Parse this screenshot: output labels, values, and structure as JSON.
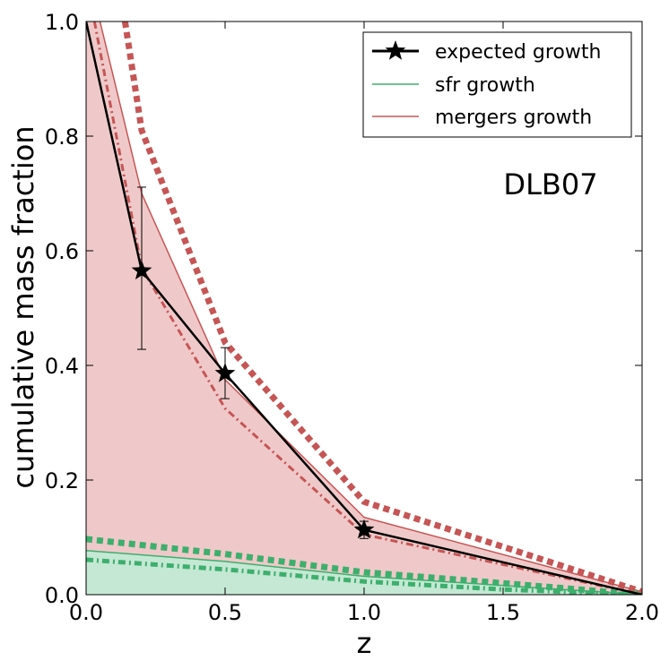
{
  "chart_data": {
    "type": "line",
    "title": "",
    "xlabel": "z",
    "ylabel": "cumulative mass fraction",
    "xlim": [
      0.0,
      2.0
    ],
    "ylim": [
      0.0,
      1.0
    ],
    "xticks": [
      "0.0",
      "0.5",
      "1.0",
      "1.5",
      "2.0"
    ],
    "yticks": [
      "0.0",
      "0.2",
      "0.4",
      "0.6",
      "0.8",
      "1.0"
    ],
    "annotation": "DLB07",
    "legend": {
      "placement": "top-right",
      "entries": [
        "expected growth",
        "sfr growth",
        "mergers growth"
      ]
    },
    "colors": {
      "expected": "#000000",
      "sfr": "#3daf6d",
      "mergers": "#c65555",
      "mergers_fill": "#efc9c9",
      "sfr_fill": "#c4e8d3"
    },
    "series": [
      {
        "name": "expected growth",
        "style": "solid-star",
        "x": [
          0.0,
          0.2,
          0.5,
          1.0,
          2.0
        ],
        "y": [
          1.0,
          0.565,
          0.386,
          0.113,
          0.0
        ],
        "yerr_low": [
          null,
          0.428,
          0.342,
          0.098,
          null
        ],
        "yerr_high": [
          null,
          0.711,
          0.431,
          0.128,
          null
        ]
      },
      {
        "name": "mergers growth",
        "style": "solid-thin",
        "x": [
          0.05,
          0.2,
          0.5,
          1.0,
          2.0
        ],
        "y": [
          1.0,
          0.7,
          0.375,
          0.135,
          0.005
        ]
      },
      {
        "name": "mergers upper",
        "style": "dotted-thick",
        "x": [
          0.14,
          0.2,
          0.5,
          1.0,
          2.0
        ],
        "y": [
          1.0,
          0.81,
          0.44,
          0.162,
          0.005
        ]
      },
      {
        "name": "mergers lower",
        "style": "dashdot",
        "x": [
          0.03,
          0.2,
          0.5,
          1.0,
          2.0
        ],
        "y": [
          1.0,
          0.57,
          0.325,
          0.105,
          0.0
        ]
      },
      {
        "name": "sfr growth",
        "style": "solid-thin",
        "x": [
          0.0,
          0.5,
          1.0,
          1.5,
          2.0
        ],
        "y": [
          0.077,
          0.058,
          0.032,
          0.016,
          0.0
        ]
      },
      {
        "name": "sfr upper",
        "style": "dotted-thick",
        "x": [
          0.0,
          0.5,
          1.0,
          1.5,
          2.0
        ],
        "y": [
          0.097,
          0.071,
          0.039,
          0.02,
          0.0
        ]
      },
      {
        "name": "sfr lower",
        "style": "dashdot",
        "x": [
          0.0,
          0.5,
          1.0,
          1.5,
          2.0
        ],
        "y": [
          0.061,
          0.044,
          0.023,
          0.009,
          0.0
        ]
      }
    ]
  }
}
